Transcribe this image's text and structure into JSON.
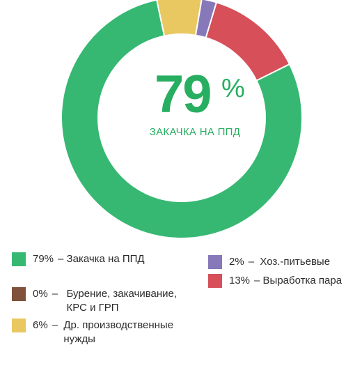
{
  "chart_data": {
    "type": "pie",
    "variant": "donut",
    "center": {
      "value": "79",
      "unit": "%",
      "caption": "ЗАКАЧКА НА ППД"
    },
    "slices": [
      {
        "key": "ppd",
        "value": 79,
        "color": "#36b873",
        "percent_label": "79%",
        "label": "Закачка на ППД"
      },
      {
        "key": "drilling",
        "value": 0,
        "color": "#80513b",
        "percent_label": "0%",
        "label": "Бурение, закачивание, КРС и ГРП"
      },
      {
        "key": "production",
        "value": 6,
        "color": "#e9c862",
        "percent_label": "6%",
        "label": "Др. производственные нужды"
      },
      {
        "key": "household",
        "value": 2,
        "color": "#8779b9",
        "percent_label": "2%",
        "label": "Хоз.-питьевые"
      },
      {
        "key": "steam",
        "value": 13,
        "color": "#d64f59",
        "percent_label": "13%",
        "label": "Выработка пара"
      }
    ],
    "legend": {
      "placement": "bottom"
    }
  }
}
